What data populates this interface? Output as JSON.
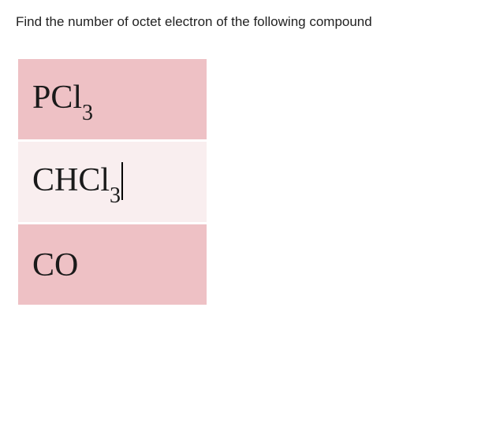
{
  "question": "Find the number of octet electron of the following compound",
  "table": {
    "rows": [
      {
        "bg": "row-dark",
        "formula": {
          "parts": [
            "PCl",
            {
              "sub": "3"
            }
          ]
        },
        "has_cursor": false
      },
      {
        "bg": "row-light",
        "formula": {
          "parts": [
            "CHCl",
            {
              "sub": "3"
            }
          ]
        },
        "has_cursor": true
      },
      {
        "bg": "row-dark",
        "formula": {
          "parts": [
            "CO"
          ]
        },
        "has_cursor": false
      }
    ],
    "colors": {
      "row_dark": "#eec1c5",
      "row_light": "#f9eeef",
      "border": "#ffffff"
    },
    "font": {
      "family": "Times New Roman",
      "size_main": 42,
      "size_sub": 28,
      "color": "#1a1a1a"
    }
  }
}
